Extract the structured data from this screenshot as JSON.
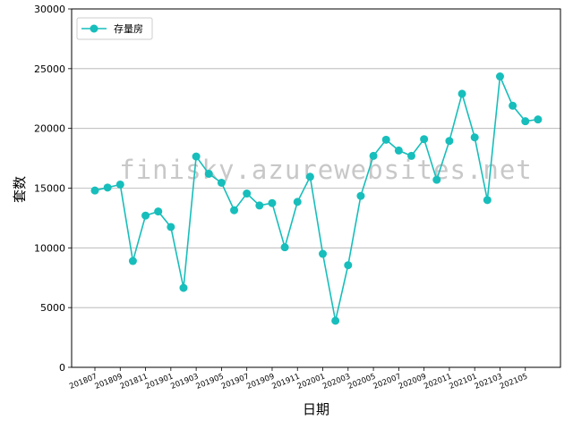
{
  "chart_data": {
    "type": "line",
    "xlabel": "日期",
    "ylabel": "套数",
    "ylim": [
      0,
      30000
    ],
    "yticks": [
      0,
      5000,
      10000,
      15000,
      20000,
      25000,
      30000
    ],
    "grid": "y-major",
    "legend_position": "top-left",
    "watermark": "finisky.azurewebsites.net",
    "line_color": "#17bebb",
    "categories": [
      "201807",
      "201808",
      "201809",
      "201810",
      "201811",
      "201812",
      "201901",
      "201902",
      "201903",
      "201904",
      "201905",
      "201906",
      "201907",
      "201908",
      "201909",
      "201910",
      "201911",
      "201912",
      "202001",
      "202002",
      "202003",
      "202004",
      "202005",
      "202006",
      "202007",
      "202008",
      "202009",
      "202010",
      "202011",
      "202012",
      "202101",
      "202102",
      "202103",
      "202104",
      "202105",
      "202106"
    ],
    "xtick_labels": [
      "201807",
      "201809",
      "201811",
      "201901",
      "201903",
      "201905",
      "201907",
      "201909",
      "201911",
      "202001",
      "202003",
      "202005",
      "202007",
      "202009",
      "202011",
      "202101",
      "202103",
      "202105"
    ],
    "series": [
      {
        "name": "存量房",
        "values": [
          14800,
          15050,
          15300,
          8900,
          12700,
          13050,
          11750,
          6650,
          17650,
          16200,
          15450,
          13150,
          14550,
          13550,
          13750,
          10050,
          13850,
          15950,
          9500,
          3900,
          8550,
          14350,
          17700,
          19050,
          18150,
          17700,
          19100,
          15700,
          18950,
          22900,
          19250,
          14000,
          24350,
          21900,
          20600,
          20750
        ]
      }
    ]
  }
}
